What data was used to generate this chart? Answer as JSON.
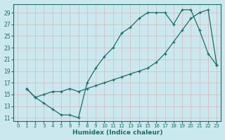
{
  "xlabel": "Humidex (Indice chaleur)",
  "bg_color": "#cce8ef",
  "grid_color": "#b0d0d8",
  "line_color": "#1a6e64",
  "xlim": [
    -0.5,
    23.5
  ],
  "ylim": [
    10.5,
    30.5
  ],
  "yticks": [
    11,
    13,
    15,
    17,
    19,
    21,
    23,
    25,
    27,
    29
  ],
  "xticks": [
    0,
    1,
    2,
    3,
    4,
    5,
    6,
    7,
    8,
    9,
    10,
    11,
    12,
    13,
    14,
    15,
    16,
    17,
    18,
    19,
    20,
    21,
    22,
    23
  ],
  "line1_x": [
    1,
    2,
    3,
    4,
    5,
    6,
    7,
    8,
    9,
    10,
    11,
    12,
    13,
    14,
    15,
    16,
    17,
    18,
    19,
    20,
    21,
    22,
    23
  ],
  "line1_y": [
    16,
    14.5,
    13.5,
    12.5,
    11.5,
    11.5,
    11,
    17,
    19.5,
    21.5,
    23,
    25.5,
    26.5,
    28,
    29,
    29,
    29,
    27,
    29.5,
    29.5,
    26,
    22,
    20
  ],
  "line2_x": [
    1,
    2,
    3,
    4,
    5,
    6,
    7,
    8,
    9,
    10,
    11,
    12,
    13,
    14,
    15,
    16,
    17,
    18,
    19,
    20,
    21,
    22,
    23
  ],
  "line2_y": [
    16,
    14.5,
    15,
    15.5,
    15.5,
    16,
    15.5,
    16,
    16.5,
    17,
    17.5,
    18,
    18.5,
    19,
    19.5,
    20.5,
    22,
    24,
    26,
    28,
    29,
    29.5,
    20
  ]
}
